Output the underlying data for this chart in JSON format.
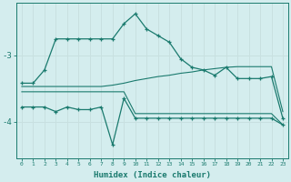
{
  "xlabel": "Humidex (Indice chaleur)",
  "ylabel": "",
  "bg_color": "#d4edee",
  "line_color": "#1a7a6e",
  "grid_color": "#c8e0e0",
  "xlim": [
    -0.5,
    23.5
  ],
  "ylim": [
    -4.55,
    -2.2
  ],
  "yticks": [
    -4,
    -3
  ],
  "xticks": [
    0,
    1,
    2,
    3,
    4,
    5,
    6,
    7,
    8,
    9,
    10,
    11,
    12,
    13,
    14,
    15,
    16,
    17,
    18,
    19,
    20,
    21,
    22,
    23
  ],
  "upper_x": [
    0,
    1,
    2,
    3,
    4,
    5,
    6,
    7,
    8,
    9,
    10,
    11,
    12,
    13,
    14,
    15,
    16,
    17,
    18,
    19,
    20,
    21,
    22,
    23
  ],
  "upper_y": [
    -3.42,
    -3.42,
    -3.22,
    -2.75,
    -2.75,
    -2.75,
    -2.75,
    -2.75,
    -2.75,
    -2.52,
    -2.37,
    -2.6,
    -2.7,
    -2.8,
    -3.05,
    -3.18,
    -3.22,
    -3.3,
    -3.18,
    -3.35,
    -3.35,
    -3.35,
    -3.32,
    -3.95
  ],
  "lower_x": [
    0,
    1,
    2,
    3,
    4,
    5,
    6,
    7,
    8,
    9,
    10,
    11,
    12,
    13,
    14,
    15,
    16,
    17,
    18,
    19,
    20,
    21,
    22,
    23
  ],
  "lower_y": [
    -3.78,
    -3.78,
    -3.78,
    -3.85,
    -3.78,
    -3.82,
    -3.82,
    -3.78,
    -4.35,
    -3.65,
    -3.95,
    -3.95,
    -3.95,
    -3.95,
    -3.95,
    -3.95,
    -3.95,
    -3.95,
    -3.95,
    -3.95,
    -3.95,
    -3.95,
    -3.95,
    -4.05
  ],
  "flat_upper_x": [
    0,
    1,
    2,
    3,
    4,
    5,
    6,
    7,
    8,
    9,
    10,
    11,
    12,
    13,
    14,
    15,
    16,
    17,
    18,
    19,
    20,
    21,
    22,
    23
  ],
  "flat_upper_y": [
    -3.47,
    -3.47,
    -3.47,
    -3.47,
    -3.47,
    -3.47,
    -3.47,
    -3.47,
    -3.45,
    -3.42,
    -3.38,
    -3.35,
    -3.32,
    -3.3,
    -3.27,
    -3.25,
    -3.22,
    -3.2,
    -3.18,
    -3.17,
    -3.17,
    -3.17,
    -3.17,
    -3.85
  ],
  "flat_lower_x": [
    0,
    1,
    2,
    3,
    4,
    5,
    6,
    7,
    8,
    9,
    10,
    11,
    12,
    13,
    14,
    15,
    16,
    17,
    18,
    19,
    20,
    21,
    22,
    23
  ],
  "flat_lower_y": [
    -3.55,
    -3.55,
    -3.55,
    -3.55,
    -3.55,
    -3.55,
    -3.55,
    -3.55,
    -3.55,
    -3.55,
    -3.88,
    -3.88,
    -3.88,
    -3.88,
    -3.88,
    -3.88,
    -3.88,
    -3.88,
    -3.88,
    -3.88,
    -3.88,
    -3.88,
    -3.88,
    -4.05
  ]
}
